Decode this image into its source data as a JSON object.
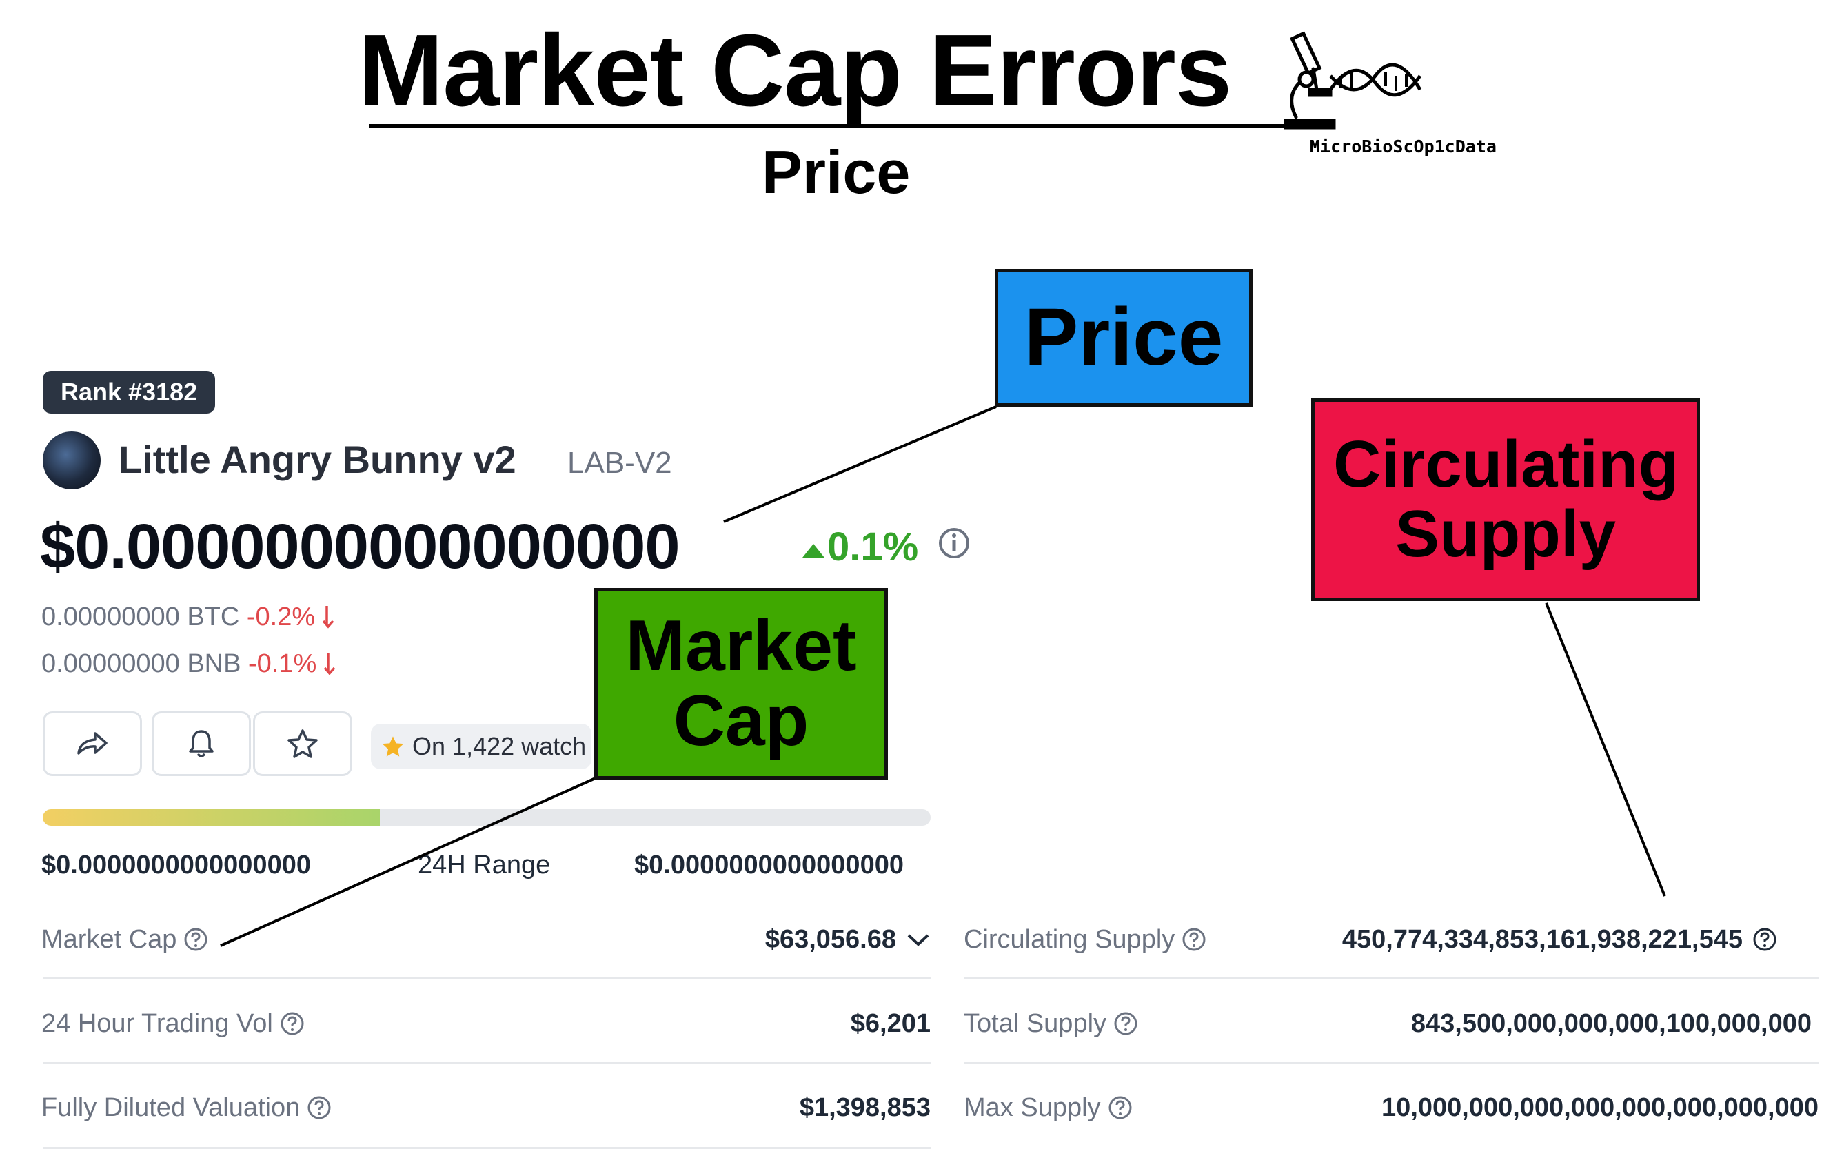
{
  "header": {
    "title": "Market Cap Errors",
    "subtitle": "Price",
    "logo_text": "MicroBioScOp1cData"
  },
  "coin": {
    "rank": "Rank #3182",
    "name": "Little Angry Bunny v2",
    "symbol": "LAB-V2",
    "price": "$0.0000000000000000",
    "price_change": "0.1%",
    "btc_value": "0.00000000 BTC",
    "btc_change": "-0.2%",
    "bnb_value": "0.00000000 BNB",
    "bnb_change": "-0.1%",
    "watchlist": "On 1,422 watch"
  },
  "range": {
    "low": "$0.0000000000000000",
    "label": "24H Range",
    "high": "$0.0000000000000000",
    "position_fraction": 0.38
  },
  "stats_left": [
    {
      "label": "Market Cap",
      "value": "$63,056.68"
    },
    {
      "label": "24 Hour Trading Vol",
      "value": "$6,201"
    },
    {
      "label": "Fully Diluted Valuation",
      "value": "$1,398,853"
    }
  ],
  "stats_right": [
    {
      "label": "Circulating Supply",
      "value": "450,774,334,853,161,938,221,545"
    },
    {
      "label": "Total Supply",
      "value": "843,500,000,000,000,100,000,000"
    },
    {
      "label": "Max Supply",
      "value": "10,000,000,000,000,000,000,000,000"
    }
  ],
  "callouts": {
    "price": "Price",
    "circulating_supply": "Circulating Supply",
    "market_cap": "Market Cap"
  },
  "colors": {
    "positive": "#35a32a",
    "negative": "#e0484b",
    "price_callout": "#1b92ee",
    "circ_callout": "#ed1446",
    "mcap_callout": "#3fa800",
    "rank_badge": "#2b3442"
  },
  "icons": [
    "share-icon",
    "bell-icon",
    "star-icon",
    "info-icon",
    "help-circle-icon",
    "chevron-down-icon",
    "arrow-down-icon",
    "triangle-up-icon"
  ]
}
